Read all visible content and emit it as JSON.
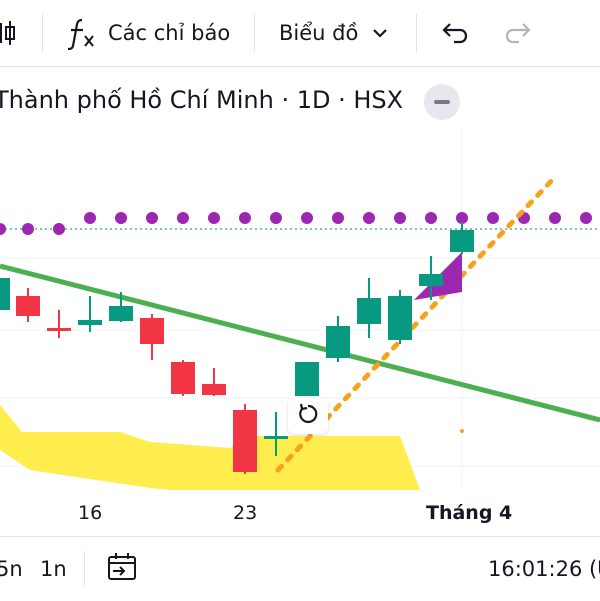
{
  "toolbar": {
    "indicators_label": "Các chỉ báo",
    "chart_label": "Biểu đồ"
  },
  "symbol": {
    "title": "Thành phố Hồ Chí Minh · 1D · HSX"
  },
  "chart": {
    "x_labels": [
      "16",
      "23",
      "Tháng 4"
    ]
  },
  "bottom": {
    "range_5n": "5n",
    "range_1n": "1n",
    "time": "16:01:26 (U"
  },
  "colors": {
    "up": "#089981",
    "down": "#f23645",
    "trendline": "#4caf50",
    "dots": "#9c27b0",
    "cloud": "#ffeb3b",
    "orange_dots": "#f7a21b"
  }
}
